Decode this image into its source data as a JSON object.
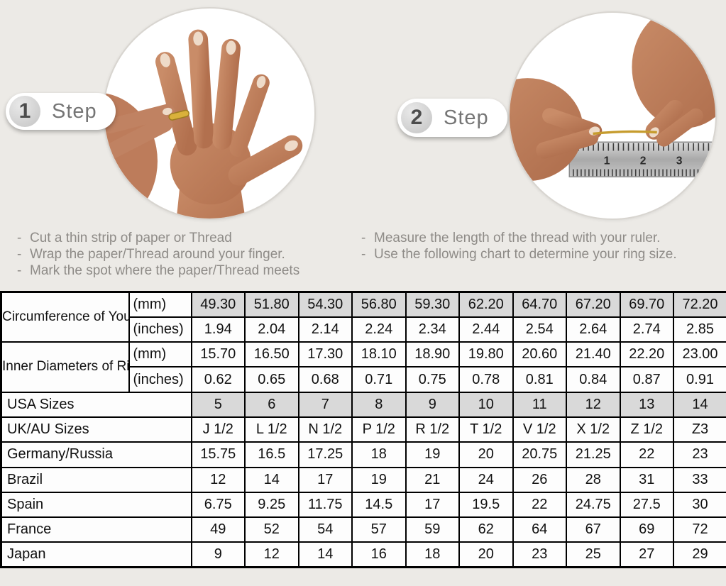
{
  "page": {
    "background": "#eceae6"
  },
  "bullet_char": "-",
  "steps": [
    {
      "number": "1",
      "label": "Step",
      "image": "hand-with-ring-photo",
      "instructions": [
        "Cut a thin strip of paper or Thread",
        "Wrap the paper/Thread around your finger.",
        "Mark the spot where the paper/Thread meets"
      ]
    },
    {
      "number": "2",
      "label": "Step",
      "image": "measuring-thread-with-ruler-photo",
      "instructions": [
        "Measure the length of the thread with your ruler.",
        "Use the following chart to determine your ring size."
      ]
    }
  ],
  "ruler": {
    "numbers": [
      "1",
      "2",
      "3"
    ]
  },
  "table": {
    "shade_color": "#d9d9d9",
    "measure_groups": [
      {
        "label": "Circumference of Your Finger",
        "rows": [
          {
            "unit": "(mm)",
            "shaded": true,
            "values": [
              "49.30",
              "51.80",
              "54.30",
              "56.80",
              "59.30",
              "62.20",
              "64.70",
              "67.20",
              "69.70",
              "72.20"
            ]
          },
          {
            "unit": "(inches)",
            "shaded": false,
            "values": [
              "1.94",
              "2.04",
              "2.14",
              "2.24",
              "2.34",
              "2.44",
              "2.54",
              "2.64",
              "2.74",
              "2.85"
            ]
          }
        ]
      },
      {
        "label": "Inner Diameters of Rings",
        "rows": [
          {
            "unit": "(mm)",
            "shaded": false,
            "values": [
              "15.70",
              "16.50",
              "17.30",
              "18.10",
              "18.90",
              "19.80",
              "20.60",
              "21.40",
              "22.20",
              "23.00"
            ]
          },
          {
            "unit": "(inches)",
            "shaded": false,
            "values": [
              "0.62",
              "0.65",
              "0.68",
              "0.71",
              "0.75",
              "0.78",
              "0.81",
              "0.84",
              "0.87",
              "0.91"
            ]
          }
        ]
      }
    ],
    "size_rows": [
      {
        "label": "USA Sizes",
        "shaded": true,
        "values": [
          "5",
          "6",
          "7",
          "8",
          "9",
          "10",
          "11",
          "12",
          "13",
          "14"
        ]
      },
      {
        "label": "UK/AU Sizes",
        "shaded": false,
        "values": [
          "J 1/2",
          "L 1/2",
          "N 1/2",
          "P 1/2",
          "R 1/2",
          "T 1/2",
          "V 1/2",
          "X 1/2",
          "Z 1/2",
          "Z3"
        ]
      },
      {
        "label": "Germany/Russia",
        "shaded": false,
        "values": [
          "15.75",
          "16.5",
          "17.25",
          "18",
          "19",
          "20",
          "20.75",
          "21.25",
          "22",
          "23"
        ]
      },
      {
        "label": "Brazil",
        "shaded": false,
        "values": [
          "12",
          "14",
          "17",
          "19",
          "21",
          "24",
          "26",
          "28",
          "31",
          "33"
        ]
      },
      {
        "label": "Spain",
        "shaded": false,
        "values": [
          "6.75",
          "9.25",
          "11.75",
          "14.5",
          "17",
          "19.5",
          "22",
          "24.75",
          "27.5",
          "30"
        ]
      },
      {
        "label": "France",
        "shaded": false,
        "values": [
          "49",
          "52",
          "54",
          "57",
          "59",
          "62",
          "64",
          "67",
          "69",
          "72"
        ]
      },
      {
        "label": "Japan",
        "shaded": false,
        "values": [
          "9",
          "12",
          "14",
          "16",
          "18",
          "20",
          "23",
          "25",
          "27",
          "29"
        ]
      }
    ]
  }
}
